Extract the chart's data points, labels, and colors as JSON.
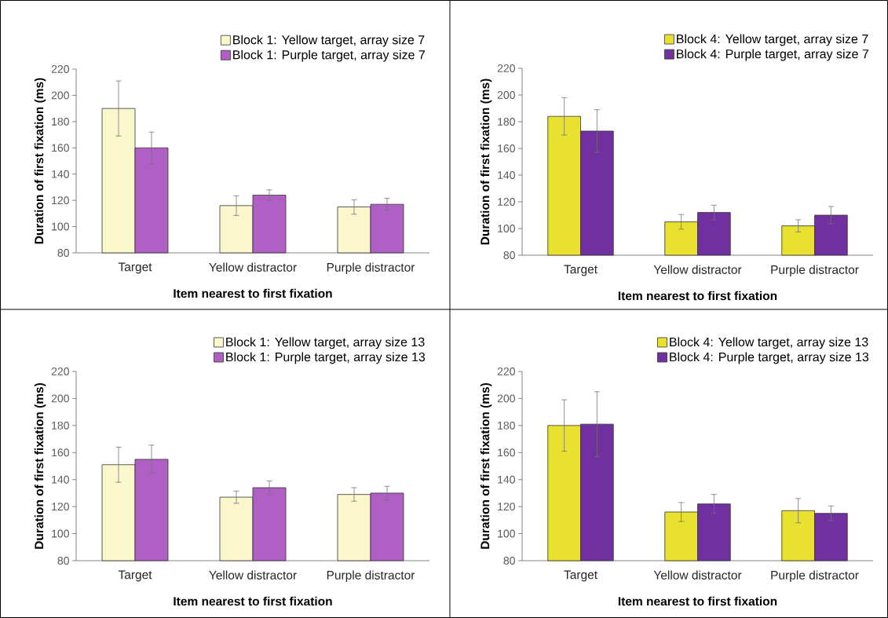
{
  "chart_data": [
    {
      "type": "bar",
      "categories": [
        "Target",
        "Yellow distractor",
        "Purple distractor"
      ],
      "xlabel": "Item nearest to first fixation",
      "ylabel": "Duration of first fixation (ms)",
      "ylim": [
        80,
        220
      ],
      "yticks": [
        80,
        100,
        120,
        140,
        160,
        180,
        200,
        220
      ],
      "legend": "top right",
      "series": [
        {
          "name": "Block 1: Yellow target, array size 7",
          "color": "#faf7cc",
          "values": [
            190,
            116,
            115
          ],
          "errors": [
            21,
            7.5,
            5.5
          ]
        },
        {
          "name": "Block 1: Purple target, array size 7",
          "color": "#b05fc4",
          "values": [
            160,
            124,
            117
          ],
          "errors": [
            12,
            4,
            4.5
          ]
        }
      ]
    },
    {
      "type": "bar",
      "categories": [
        "Target",
        "Yellow distractor",
        "Purple distractor"
      ],
      "xlabel": "Item nearest to first fixation",
      "ylabel": "Duration of first fixation (ms)",
      "ylim": [
        80,
        220
      ],
      "yticks": [
        80,
        100,
        120,
        140,
        160,
        180,
        200,
        220
      ],
      "legend": "top right",
      "series": [
        {
          "name": "Block 4: Yellow target, array size 7",
          "color": "#e8e130",
          "values": [
            184,
            105,
            102
          ],
          "errors": [
            14,
            5.5,
            4.5
          ]
        },
        {
          "name": "Block 4: Purple target, array size 7",
          "color": "#7030a0",
          "values": [
            173,
            112,
            110
          ],
          "errors": [
            16,
            5.5,
            6.5
          ]
        }
      ]
    },
    {
      "type": "bar",
      "categories": [
        "Target",
        "Yellow distractor",
        "Purple distractor"
      ],
      "xlabel": "Item nearest to first fixation",
      "ylabel": "Duration of first fixation (ms)",
      "ylim": [
        80,
        220
      ],
      "yticks": [
        80,
        100,
        120,
        140,
        160,
        180,
        200,
        220
      ],
      "legend": "top right",
      "series": [
        {
          "name": "Block 1: Yellow target, array size 13",
          "color": "#faf7cc",
          "values": [
            151,
            127,
            129
          ],
          "errors": [
            13,
            4.5,
            5
          ]
        },
        {
          "name": "Block 1: Purple target, array size 13",
          "color": "#b05fc4",
          "values": [
            155,
            134,
            130
          ],
          "errors": [
            10.5,
            5,
            5
          ]
        }
      ]
    },
    {
      "type": "bar",
      "categories": [
        "Target",
        "Yellow distractor",
        "Purple distractor"
      ],
      "xlabel": "Item nearest to first fixation",
      "ylabel": "Duration of first fixation (ms)",
      "ylim": [
        80,
        220
      ],
      "yticks": [
        80,
        100,
        120,
        140,
        160,
        180,
        200,
        220
      ],
      "legend": "top right",
      "series": [
        {
          "name": "Block 4: Yellow target, array size 13",
          "color": "#e8e130",
          "values": [
            180,
            116,
            117
          ],
          "errors": [
            19,
            7,
            9
          ]
        },
        {
          "name": "Block 4: Purple target, array size 13",
          "color": "#7030a0",
          "values": [
            181,
            122,
            115
          ],
          "errors": [
            24,
            7,
            5.5
          ]
        }
      ]
    }
  ]
}
